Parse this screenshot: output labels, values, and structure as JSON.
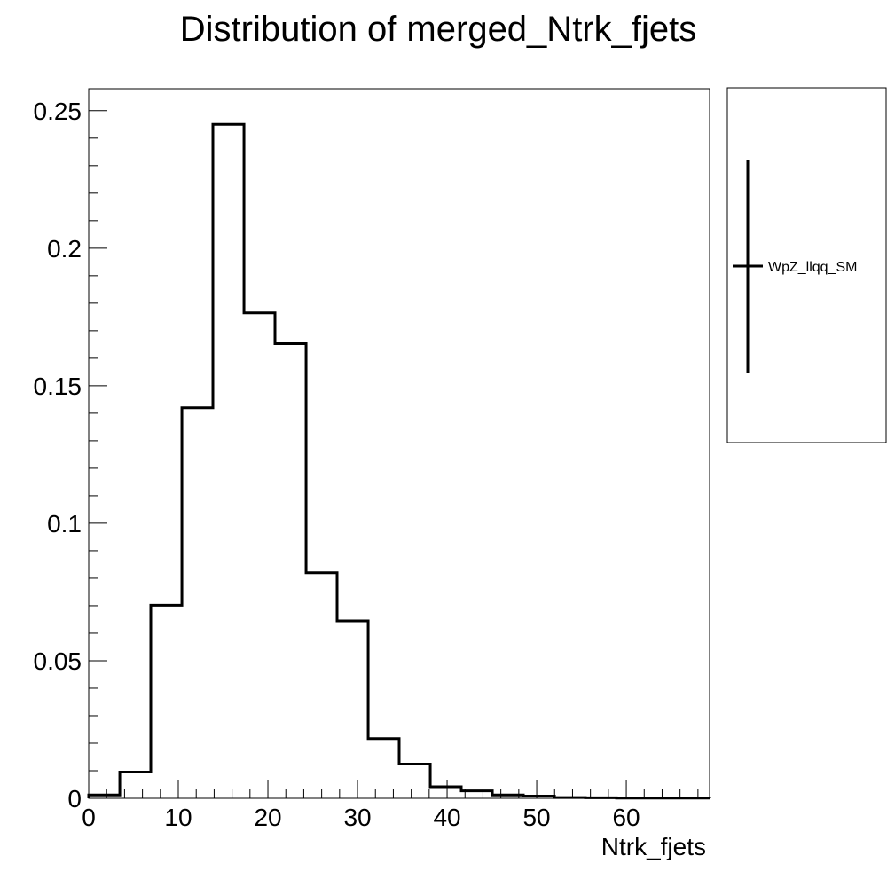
{
  "chart_data": {
    "type": "histogram",
    "title": "Distribution of merged_Ntrk_fjets",
    "xlabel": "Ntrk_fjets",
    "ylabel": "",
    "xlim": [
      0,
      69.3
    ],
    "ylim": [
      0,
      0.258
    ],
    "x_ticks": [
      0,
      10,
      20,
      30,
      40,
      50,
      60
    ],
    "y_ticks": [
      0,
      0.05,
      0.1,
      0.15,
      0.2,
      0.25
    ],
    "y_tick_labels": [
      "0",
      "0.05",
      "0.1",
      "0.15",
      "0.2",
      "0.25"
    ],
    "grid": false,
    "legend_position": "right",
    "series": [
      {
        "name": "WpZ_llqq_SM",
        "color": "#000000",
        "bin_edges": [
          0,
          3.47,
          6.93,
          10.4,
          13.86,
          17.33,
          20.79,
          24.26,
          27.72,
          31.19,
          34.65,
          38.12,
          41.58,
          45.05,
          48.51,
          51.98,
          55.44,
          58.91,
          62.37,
          65.84,
          69.3
        ],
        "values": [
          0.0012,
          0.0095,
          0.0702,
          0.142,
          0.245,
          0.1765,
          0.1653,
          0.082,
          0.0645,
          0.0217,
          0.0124,
          0.0042,
          0.0027,
          0.0012,
          0.0008,
          0.0003,
          0.0002,
          0.0001,
          0.0001,
          0.0001
        ]
      }
    ]
  }
}
